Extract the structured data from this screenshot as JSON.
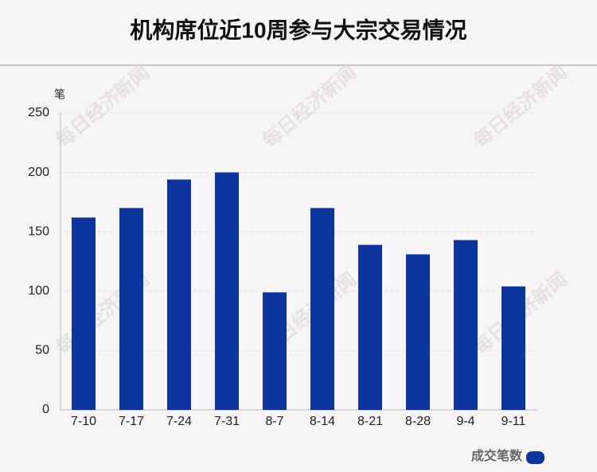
{
  "chart_data": {
    "type": "bar",
    "title": "机构席位近10周参与大宗交易情况",
    "y_label": "笔",
    "watermark": "每日经济新闻",
    "categories": [
      "7-10",
      "7-17",
      "7-24",
      "7-31",
      "8-7",
      "8-14",
      "8-21",
      "8-28",
      "9-4",
      "9-11"
    ],
    "series": [
      {
        "name": "成交笔数",
        "color": "#0d35a0",
        "values": [
          162,
          170,
          194,
          200,
          99,
          170,
          139,
          131,
          143,
          104
        ]
      }
    ],
    "ylim": [
      0,
      250
    ],
    "yticks": [
      0,
      50,
      100,
      150,
      200,
      250
    ],
    "grid": true,
    "legend": "bottom-right"
  }
}
